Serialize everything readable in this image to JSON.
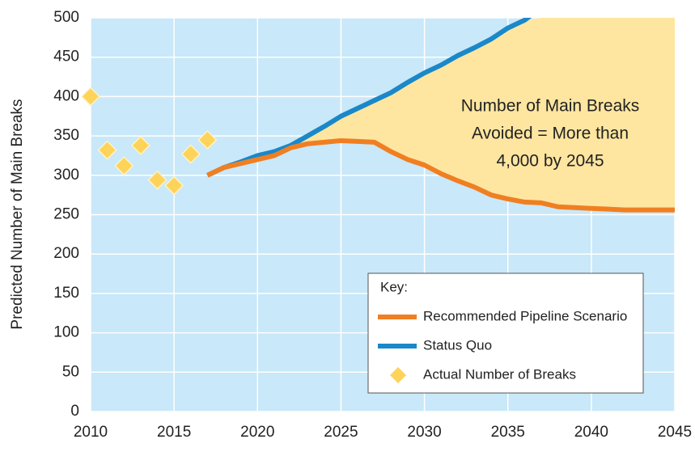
{
  "chart_data": {
    "type": "line",
    "ylabel": "Predicted Number of Main Breaks",
    "xlim": [
      2010,
      2045
    ],
    "xticks": [
      2010,
      2015,
      2020,
      2025,
      2030,
      2035,
      2040,
      2045
    ],
    "ylim": [
      0,
      500
    ],
    "yticks": [
      0,
      50,
      100,
      150,
      200,
      250,
      300,
      350,
      400,
      450,
      500
    ],
    "grid": true,
    "background": "#c9e8f9",
    "area_color": "#fee6a0",
    "annotation": [
      "Number of Main Breaks",
      "Avoided = More than",
      "4,000 by 2045"
    ],
    "legend": {
      "title": "Key:",
      "position": "lower right"
    },
    "series": [
      {
        "name": "Recommended Pipeline Scenario",
        "style": "line",
        "color": "#f07f22",
        "x": [
          2017,
          2018,
          2019,
          2020,
          2021,
          2022,
          2023,
          2024,
          2025,
          2026,
          2027,
          2028,
          2029,
          2030,
          2031,
          2032,
          2033,
          2034,
          2035,
          2036,
          2037,
          2038,
          2039,
          2040,
          2041,
          2042,
          2043,
          2044,
          2045
        ],
        "values": [
          300,
          310,
          315,
          320,
          325,
          335,
          340,
          342,
          344,
          343,
          342,
          330,
          320,
          313,
          302,
          293,
          285,
          275,
          270,
          266,
          265,
          260,
          259,
          258,
          257,
          256,
          256,
          256,
          256
        ]
      },
      {
        "name": "Status Quo",
        "style": "line",
        "color": "#1a88c9",
        "x": [
          2017,
          2018,
          2019,
          2020,
          2021,
          2022,
          2023,
          2024,
          2025,
          2026,
          2027,
          2028,
          2029,
          2030,
          2031,
          2032,
          2033,
          2034,
          2035,
          2036,
          2037
        ],
        "values": [
          300,
          310,
          317,
          325,
          330,
          338,
          350,
          362,
          375,
          385,
          395,
          405,
          418,
          430,
          440,
          452,
          462,
          473,
          487,
          497,
          513
        ]
      },
      {
        "name": "Actual Number of Breaks",
        "style": "scatter",
        "color": "#fdd35a",
        "x": [
          2010,
          2011,
          2012,
          2013,
          2014,
          2015,
          2016,
          2017
        ],
        "values": [
          400,
          332,
          312,
          338,
          294,
          287,
          327,
          345
        ]
      }
    ]
  }
}
